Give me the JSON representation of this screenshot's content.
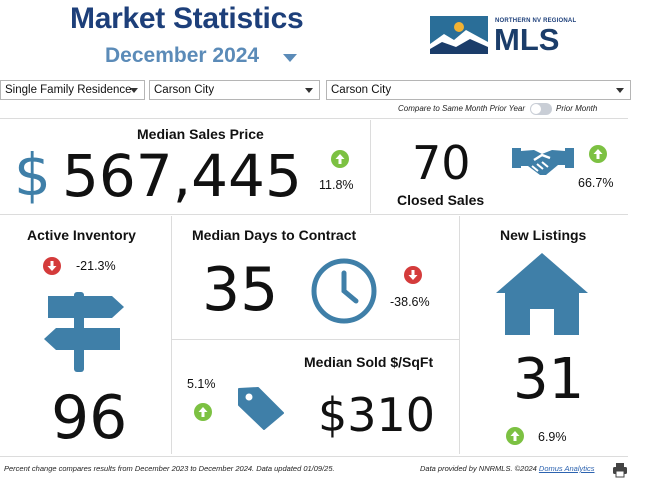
{
  "header": {
    "title": "Market Statistics",
    "month": "December 2024",
    "logo_small": "NORTHERN NV REGIONAL",
    "logo_big": "MLS"
  },
  "filters": {
    "property_type": "Single Family Residence",
    "area_1": "Carson City",
    "area_2": "Carson City"
  },
  "compare": {
    "left_label": "Compare to Same Month Prior Year",
    "right_label": "Prior Month",
    "toggle_state": "prior-year"
  },
  "median_sales_price": {
    "label": "Median Sales Price",
    "value": "567,445",
    "currency_symbol": "$",
    "change": "11.8%",
    "direction": "up"
  },
  "closed_sales": {
    "label": "Closed Sales",
    "value": "70",
    "change": "66.7%",
    "direction": "up"
  },
  "active_inventory": {
    "label": "Active Inventory",
    "value": "96",
    "change": "-21.3%",
    "direction": "down"
  },
  "median_days_to_contract": {
    "label": "Median Days to Contract",
    "value": "35",
    "change": "-38.6%",
    "direction": "down"
  },
  "median_sold_sqft": {
    "label": "Median Sold $/SqFt",
    "value": "$310",
    "change": "5.1%",
    "direction": "up"
  },
  "new_listings": {
    "label": "New Listings",
    "value": "31",
    "change": "6.9%",
    "direction": "up"
  },
  "footer": {
    "note": "Percent change compares results from December 2023 to December 2024.  Data updated 01/09/25.",
    "provider": "Data provided by NNRMLS. ©2024 ",
    "provider_link": "Domus Analytics"
  },
  "colors": {
    "title": "#1d3f7a",
    "month": "#5b8bb8",
    "icon": "#3f7fa8",
    "up": "#7cc142",
    "down": "#d43b3b"
  },
  "icons": {
    "dollar": "dollar-icon",
    "handshake": "handshake-icon",
    "signpost": "signpost-icon",
    "clock": "clock-icon",
    "price_tag": "price-tag-icon",
    "house": "house-icon",
    "printer": "printer-icon"
  }
}
